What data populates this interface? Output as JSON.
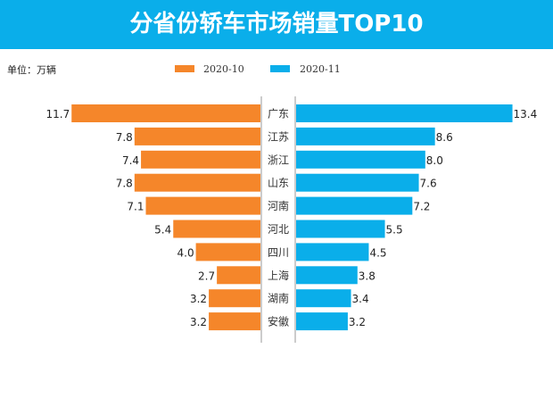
{
  "chart_data": {
    "type": "bar",
    "title": "分省份轿车市场销量TOP10",
    "unit_label": "单位：万辆",
    "categories": [
      "广东",
      "江苏",
      "浙江",
      "山东",
      "河南",
      "河北",
      "四川",
      "上海",
      "湖南",
      "安徽"
    ],
    "series": [
      {
        "name": "2020-10",
        "color": "#f5862a",
        "values": [
          11.7,
          7.8,
          7.4,
          7.8,
          7.1,
          5.4,
          4.0,
          2.7,
          3.2,
          3.2
        ],
        "labels": [
          "11.7",
          "7.8",
          "7.4",
          "7.8",
          "7.1",
          "5.4",
          "4.0",
          "2.7",
          "3.2",
          "3.2"
        ]
      },
      {
        "name": "2020-11",
        "color": "#0aaeea",
        "values": [
          13.4,
          8.6,
          8.0,
          7.6,
          7.2,
          5.5,
          4.5,
          3.8,
          3.4,
          3.2
        ],
        "labels": [
          "13.4",
          "8.6",
          "8.0",
          "7.6",
          "7.2",
          "5.5",
          "4.5",
          "3.8",
          "3.4",
          "3.2"
        ]
      }
    ],
    "legend_position": "top-center"
  }
}
